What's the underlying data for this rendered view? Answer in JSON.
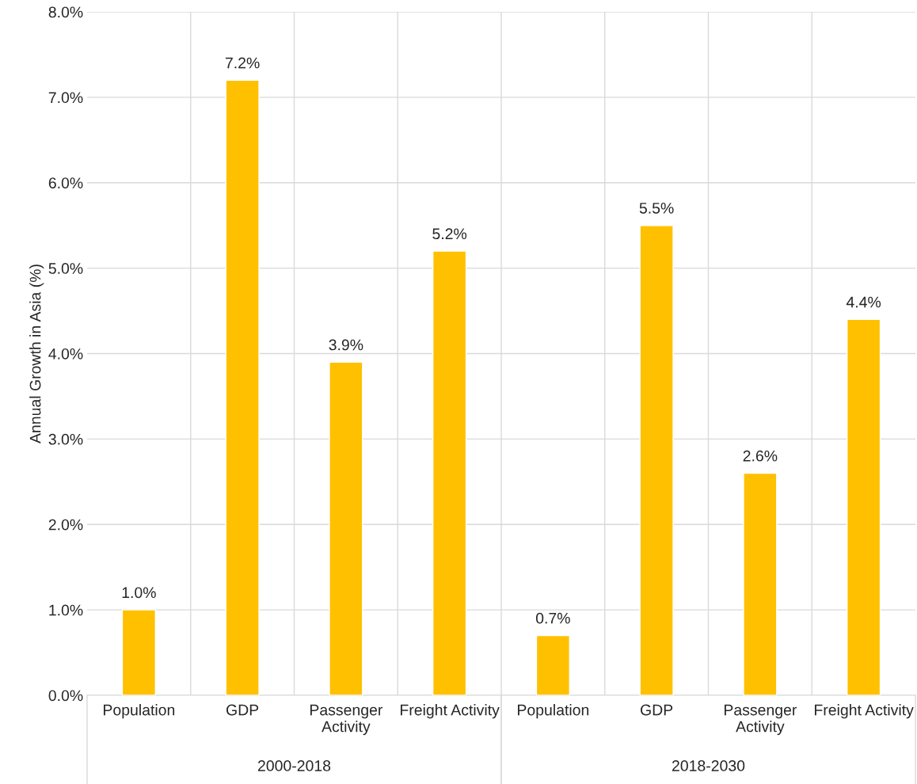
{
  "chart_data": {
    "type": "bar",
    "ylabel": "Annual Growth in Asia (%)",
    "categories": [
      "Population",
      "GDP",
      "Passenger\nActivity",
      "Freight Activity",
      "Population",
      "GDP",
      "Passenger\nActivity",
      "Freight Activity"
    ],
    "values": [
      1.0,
      7.2,
      3.9,
      5.2,
      0.7,
      5.5,
      2.6,
      4.4
    ],
    "value_labels": [
      "1.0%",
      "7.2%",
      "3.9%",
      "5.2%",
      "0.7%",
      "5.5%",
      "2.6%",
      "4.4%"
    ],
    "color": "#ffc000",
    "ylim": [
      0,
      8
    ],
    "yticks": [
      {
        "value": 0,
        "label": "0.0%"
      },
      {
        "value": 1,
        "label": "1.0%"
      },
      {
        "value": 2,
        "label": "2.0%"
      },
      {
        "value": 3,
        "label": "3.0%"
      },
      {
        "value": 4,
        "label": "4.0%"
      },
      {
        "value": 5,
        "label": "5.0%"
      },
      {
        "value": 6,
        "label": "6.0%"
      },
      {
        "value": 7,
        "label": "7.0%"
      },
      {
        "value": 8,
        "label": "8.0%"
      }
    ],
    "grid": true,
    "annotations": [
      "2000-2018",
      "2018-2030"
    ]
  }
}
